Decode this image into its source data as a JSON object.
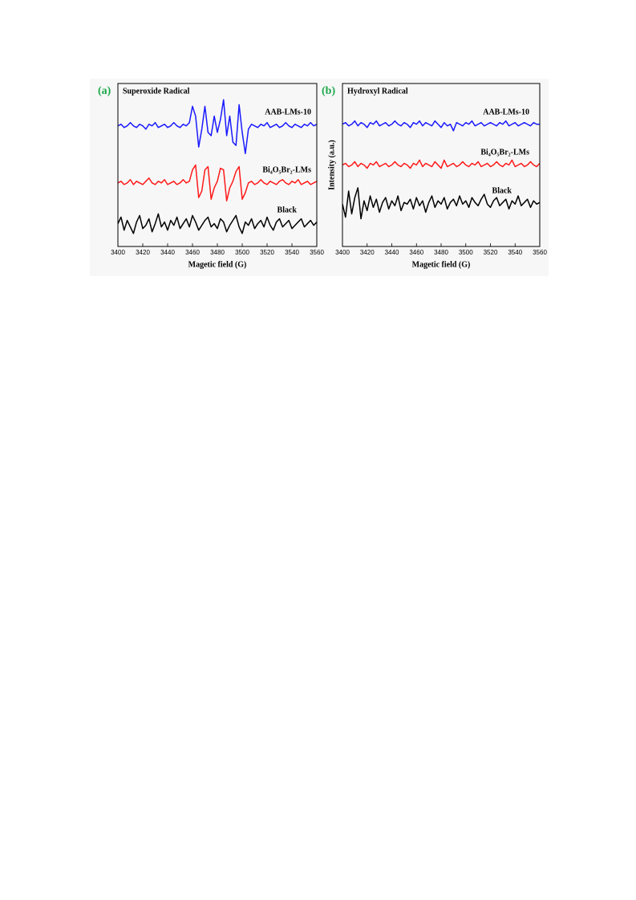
{
  "chart_data": [
    {
      "type": "line",
      "panel_label": "(a)",
      "title": "Superoxide Radical",
      "xlabel": "Magetic field (G)",
      "x": [
        3400,
        3402.5,
        3405,
        3407.5,
        3410,
        3412.5,
        3415,
        3417.5,
        3420,
        3422.5,
        3425,
        3427.5,
        3430,
        3432.5,
        3435,
        3437.5,
        3440,
        3442.5,
        3445,
        3447.5,
        3450,
        3452.5,
        3455,
        3457.5,
        3460,
        3462.5,
        3465,
        3467.5,
        3470,
        3472.5,
        3475,
        3477.5,
        3480,
        3482.5,
        3485,
        3487.5,
        3490,
        3492.5,
        3495,
        3497.5,
        3500,
        3502.5,
        3505,
        3507.5,
        3510,
        3512.5,
        3515,
        3517.5,
        3520,
        3522.5,
        3525,
        3527.5,
        3530,
        3532.5,
        3535,
        3537.5,
        3540,
        3542.5,
        3545,
        3547.5,
        3550,
        3552.5,
        3555,
        3557.5,
        3560
      ],
      "xlim": [
        3400,
        3560
      ],
      "xticks": [
        3400,
        3420,
        3440,
        3460,
        3480,
        3500,
        3520,
        3540,
        3560
      ],
      "ylim": [
        0,
        100
      ],
      "series": [
        {
          "name": "AAB-LMs-10",
          "color": "#1a1aff",
          "values": [
            74,
            75,
            73,
            74,
            76,
            74,
            73,
            75,
            74,
            72,
            75,
            74,
            76,
            73,
            74,
            75,
            73,
            74,
            76,
            74,
            73,
            75,
            74,
            76,
            86,
            80,
            61,
            72,
            86,
            70,
            68,
            80,
            70,
            78,
            90,
            68,
            80,
            64,
            62,
            87,
            70,
            57,
            72,
            75,
            74,
            73,
            75,
            74,
            76,
            73,
            74,
            75,
            73,
            74,
            76,
            74,
            73,
            75,
            74,
            73,
            75,
            74,
            76,
            74,
            75
          ]
        },
        {
          "name": "Bi₄O₅Br₂-LMs",
          "color": "#ff1a1a",
          "values": [
            39,
            40,
            38,
            39,
            41,
            38,
            40,
            39,
            38,
            40,
            42,
            39,
            38,
            40,
            39,
            41,
            38,
            39,
            40,
            38,
            39,
            41,
            39,
            40,
            47,
            50,
            30,
            34,
            47,
            49,
            29,
            36,
            40,
            48,
            47,
            28,
            36,
            40,
            46,
            49,
            29,
            33,
            39,
            40,
            38,
            39,
            41,
            39,
            38,
            40,
            39,
            38,
            40,
            41,
            39,
            38,
            40,
            39,
            41,
            38,
            39,
            40,
            38,
            39,
            40
          ]
        },
        {
          "name": "Black",
          "color": "#000000",
          "values": [
            14,
            18,
            10,
            16,
            12,
            8,
            15,
            19,
            11,
            13,
            17,
            9,
            14,
            20,
            12,
            15,
            10,
            16,
            13,
            18,
            11,
            14,
            17,
            12,
            19,
            15,
            10,
            13,
            16,
            18,
            12,
            14,
            11,
            17,
            15,
            9,
            13,
            16,
            19,
            12,
            8,
            15,
            13,
            17,
            11,
            14,
            16,
            12,
            18,
            13,
            10,
            15,
            17,
            12,
            14,
            16,
            11,
            13,
            15,
            17,
            12,
            14,
            16,
            13,
            15
          ]
        }
      ]
    },
    {
      "type": "line",
      "panel_label": "(b)",
      "title": "Hydroxyl Radical",
      "xlabel": "Magetic field (G)",
      "ylabel": "Intensity (a.u.)",
      "x": [
        3400,
        3402.5,
        3405,
        3407.5,
        3410,
        3412.5,
        3415,
        3417.5,
        3420,
        3422.5,
        3425,
        3427.5,
        3430,
        3432.5,
        3435,
        3437.5,
        3440,
        3442.5,
        3445,
        3447.5,
        3450,
        3452.5,
        3455,
        3457.5,
        3460,
        3462.5,
        3465,
        3467.5,
        3470,
        3472.5,
        3475,
        3477.5,
        3480,
        3482.5,
        3485,
        3487.5,
        3490,
        3492.5,
        3495,
        3497.5,
        3500,
        3502.5,
        3505,
        3507.5,
        3510,
        3512.5,
        3515,
        3517.5,
        3520,
        3522.5,
        3525,
        3527.5,
        3530,
        3532.5,
        3535,
        3537.5,
        3540,
        3542.5,
        3545,
        3547.5,
        3550,
        3552.5,
        3555,
        3557.5,
        3560
      ],
      "xlim": [
        3400,
        3560
      ],
      "xticks": [
        3400,
        3420,
        3440,
        3460,
        3480,
        3500,
        3520,
        3540,
        3560
      ],
      "ylim": [
        0,
        100
      ],
      "series": [
        {
          "name": "AAB-LMs-10",
          "color": "#1a1aff",
          "values": [
            75,
            76,
            74,
            75,
            77,
            74,
            76,
            75,
            73,
            76,
            75,
            77,
            74,
            75,
            76,
            74,
            75,
            77,
            75,
            74,
            76,
            75,
            73,
            76,
            75,
            77,
            74,
            76,
            75,
            74,
            77,
            75,
            73,
            76,
            74,
            75,
            71,
            76,
            75,
            74,
            76,
            75,
            77,
            74,
            75,
            76,
            74,
            75,
            76,
            75,
            74,
            76,
            75,
            77,
            74,
            75,
            76,
            74,
            75,
            76,
            75,
            74,
            76,
            75,
            75
          ]
        },
        {
          "name": "Bi₄O₅Br₂-LMs",
          "color": "#ff1a1a",
          "values": [
            50,
            51,
            49,
            50,
            52,
            49,
            51,
            50,
            48,
            51,
            50,
            52,
            49,
            50,
            51,
            49,
            50,
            52,
            50,
            49,
            51,
            50,
            48,
            51,
            50,
            53,
            49,
            51,
            50,
            49,
            52,
            50,
            48,
            53,
            49,
            50,
            51,
            49,
            50,
            52,
            50,
            49,
            51,
            50,
            52,
            49,
            50,
            51,
            49,
            50,
            52,
            50,
            49,
            51,
            50,
            53,
            49,
            50,
            51,
            49,
            50,
            52,
            50,
            49,
            51
          ]
        },
        {
          "name": "Black",
          "color": "#000000",
          "values": [
            26,
            18,
            34,
            20,
            30,
            36,
            17,
            28,
            22,
            31,
            24,
            29,
            21,
            27,
            30,
            23,
            28,
            25,
            31,
            22,
            27,
            26,
            29,
            23,
            30,
            25,
            28,
            21,
            27,
            31,
            24,
            28,
            26,
            30,
            23,
            27,
            29,
            25,
            31,
            26,
            28,
            24,
            30,
            27,
            25,
            29,
            32,
            26,
            24,
            28,
            30,
            25,
            27,
            29,
            23,
            28,
            26,
            31,
            25,
            27,
            29,
            24,
            28,
            26,
            27
          ]
        }
      ]
    }
  ]
}
